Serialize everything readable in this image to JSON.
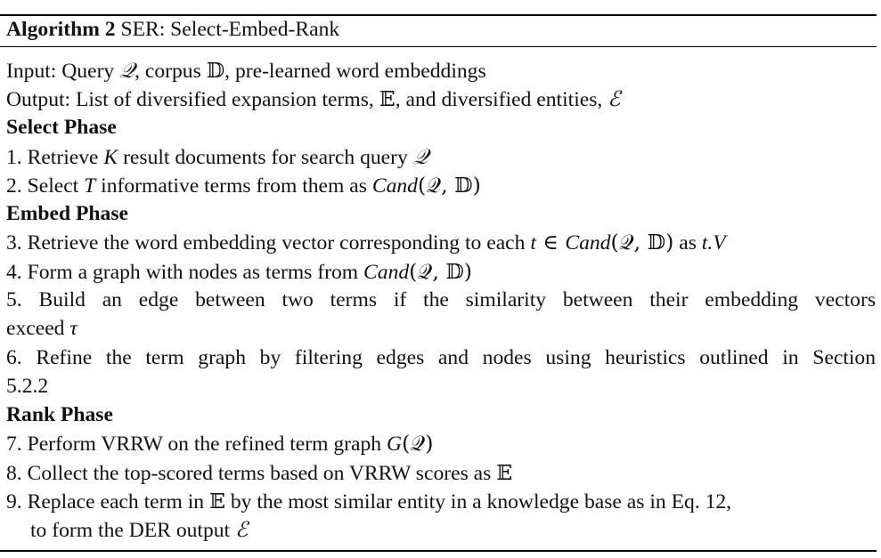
{
  "algorithm": {
    "label": "Algorithm 2",
    "title": "SER: Select-Embed-Rank"
  },
  "input": {
    "prefix": "Input: Query ",
    "query_sym": "𝒬",
    "mid1": ", corpus ",
    "corpus_sym": "𝔻",
    "suffix": ", pre-learned word embeddings"
  },
  "output": {
    "prefix": "Output: List of diversified expansion terms, ",
    "terms_sym": "𝔼",
    "mid": ", and diversified entities, ",
    "entities_sym": "ℰ"
  },
  "phases": {
    "select": "Select Phase",
    "embed": "Embed Phase",
    "rank": "Rank Phase"
  },
  "steps": {
    "s1": {
      "a": "1. Retrieve ",
      "K": "K",
      "b": " result documents for search query ",
      "q": "𝒬"
    },
    "s2": {
      "a": "2. Select ",
      "T": "T",
      "b": " informative terms from them as ",
      "cand": "Cand",
      "args": "(𝒬, 𝔻)"
    },
    "s3": {
      "a": "3. Retrieve the word embedding vector corresponding to each ",
      "t": "t",
      "in": " ∈ ",
      "cand": "Cand",
      "args": "(𝒬, 𝔻)",
      "b": " as ",
      "tv": "t.V"
    },
    "s4": {
      "a": "4. Form a graph with nodes as terms from ",
      "cand": "Cand",
      "args": "(𝒬, 𝔻)"
    },
    "s5": {
      "line1": "5. Build an edge between two terms if the similarity between their embedding vectors",
      "line2a": "exceed ",
      "tau": "τ"
    },
    "s6": {
      "line1": "6. Refine the term graph by filtering edges and nodes using heuristics outlined in Section",
      "line2": "5.2.2"
    },
    "s7": {
      "a": "7. Perform VRRW on the refined term graph ",
      "G": "G",
      "args": "(𝒬)"
    },
    "s8": {
      "a": "8. Collect the top-scored terms based on VRRW scores as ",
      "E": "𝔼"
    },
    "s9": {
      "line1a": "9. Replace each term in ",
      "E": "𝔼",
      "line1b": " by the most similar entity in a knowledge base as in Eq. 12,",
      "line2a": "to form the DER output ",
      "calE": "ℰ"
    }
  }
}
